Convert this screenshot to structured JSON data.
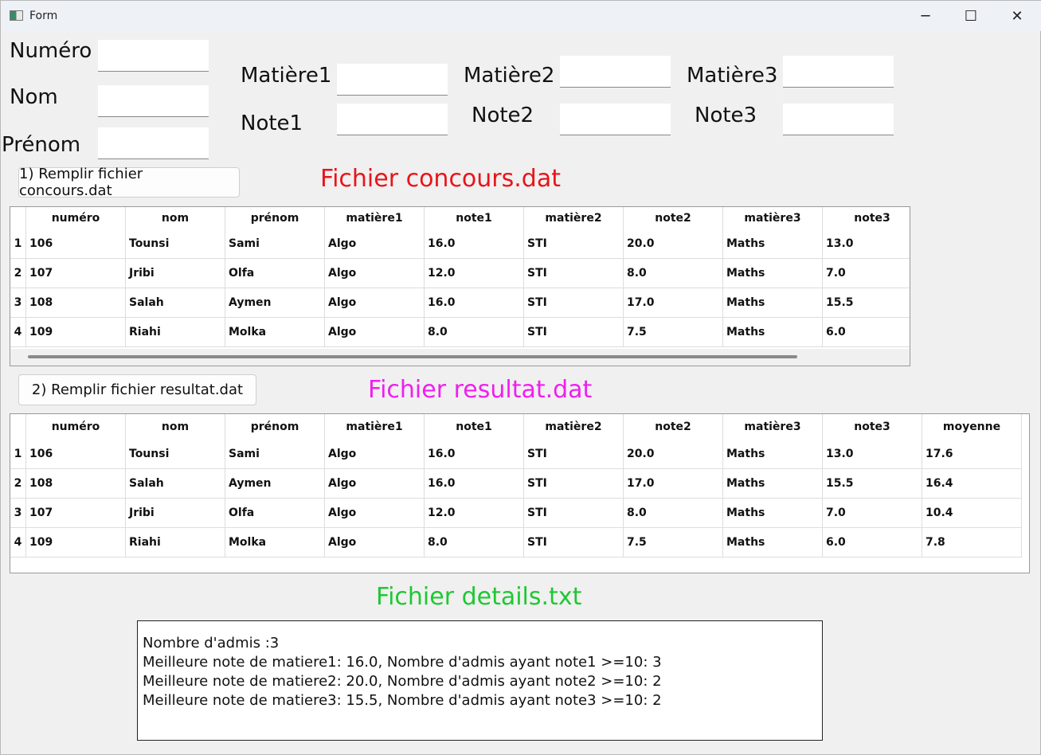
{
  "window": {
    "title": "Form",
    "minimize": "─",
    "maximize": "☐",
    "close": "✕"
  },
  "form": {
    "numero_label": "Numéro",
    "nom_label": "Nom",
    "prenom_label": "Prénom",
    "matiere1_label": "Matière1",
    "matiere2_label": "Matière2",
    "matiere3_label": "Matière3",
    "note1_label": "Note1",
    "note2_label": "Note2",
    "note3_label": "Note3",
    "numero_value": "",
    "nom_value": "",
    "prenom_value": "",
    "matiere1_value": "",
    "matiere2_value": "",
    "matiere3_value": "",
    "note1_value": "",
    "note2_value": "",
    "note3_value": ""
  },
  "buttons": {
    "fill_concours": "1) Remplir fichier concours.dat",
    "fill_resultat": "2) Remplir fichier resultat.dat"
  },
  "headings": {
    "concours": "Fichier  concours.dat",
    "resultat": "Fichier resultat.dat",
    "details": "Fichier details.txt"
  },
  "colors": {
    "concours": "#e8141b",
    "resultat": "#f01ef0",
    "details": "#1ec832"
  },
  "concours_table": {
    "columns": [
      "numéro",
      "nom",
      "prénom",
      "matière1",
      "note1",
      "matière2",
      "note2",
      "matière3",
      "note3"
    ],
    "rows": [
      [
        "106",
        "Tounsi",
        "Sami",
        "Algo",
        "16.0",
        "STI",
        "20.0",
        "Maths",
        "13.0"
      ],
      [
        "107",
        "Jribi",
        "Olfa",
        "Algo",
        "12.0",
        "STI",
        "8.0",
        "Maths",
        "7.0"
      ],
      [
        "108",
        "Salah",
        "Aymen",
        "Algo",
        "16.0",
        "STI",
        "17.0",
        "Maths",
        "15.5"
      ],
      [
        "109",
        "Riahi",
        "Molka",
        "Algo",
        "8.0",
        "STI",
        "7.5",
        "Maths",
        "6.0"
      ]
    ]
  },
  "resultat_table": {
    "columns": [
      "numéro",
      "nom",
      "prénom",
      "matière1",
      "note1",
      "matière2",
      "note2",
      "matière3",
      "note3",
      "moyenne"
    ],
    "rows": [
      [
        "106",
        "Tounsi",
        "Sami",
        "Algo",
        "16.0",
        "STI",
        "20.0",
        "Maths",
        "13.0",
        "17.6"
      ],
      [
        "108",
        "Salah",
        "Aymen",
        "Algo",
        "16.0",
        "STI",
        "17.0",
        "Maths",
        "15.5",
        "16.4"
      ],
      [
        "107",
        "Jribi",
        "Olfa",
        "Algo",
        "12.0",
        "STI",
        "8.0",
        "Maths",
        "7.0",
        "10.4"
      ],
      [
        "109",
        "Riahi",
        "Molka",
        "Algo",
        "8.0",
        "STI",
        "7.5",
        "Maths",
        "6.0",
        "7.8"
      ]
    ]
  },
  "details": {
    "lines": [
      "Nombre d'admis :3",
      "Meilleure note de matiere1: 16.0, Nombre d'admis ayant note1 >=10: 3",
      "Meilleure note de matiere2: 20.0, Nombre d'admis ayant note2 >=10: 2",
      "Meilleure note de matiere3: 15.5, Nombre d'admis ayant note3 >=10: 2"
    ]
  }
}
